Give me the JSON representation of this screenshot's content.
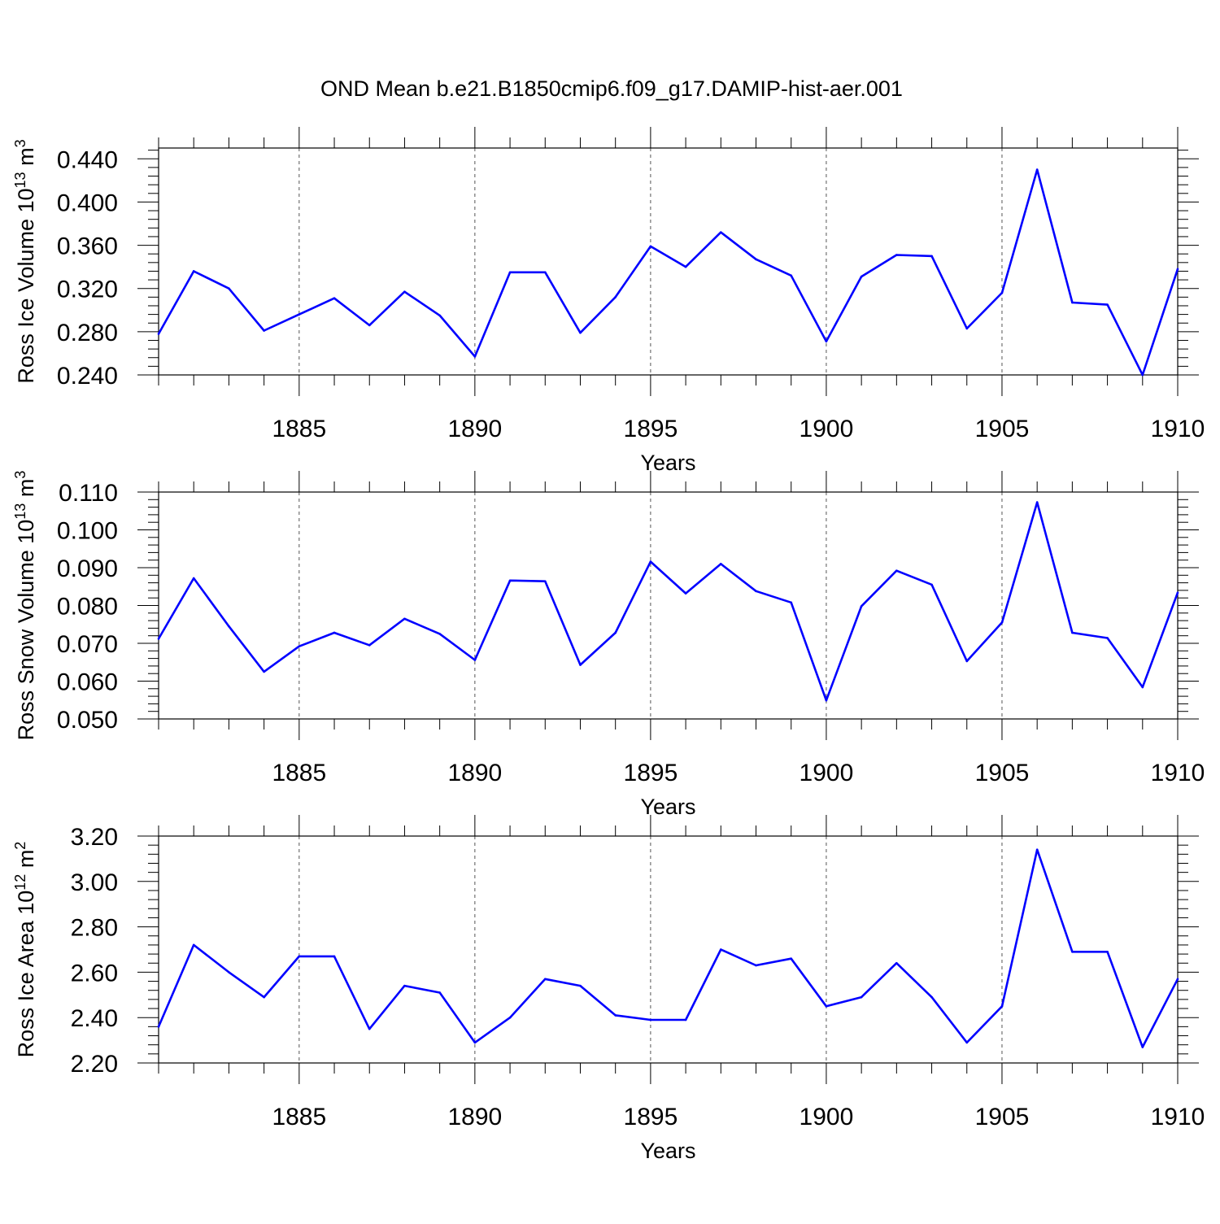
{
  "title": "OND Mean b.e21.B1850cmip6.f09_g17.DAMIP-hist-aer.001",
  "line_color": "#0000ff",
  "chart_data": [
    {
      "type": "line",
      "ylabel": "Ross Ice Volume 10",
      "ylabel_exp": "13",
      "ylabel_unit": "m",
      "ylabel_unit_exp": "3",
      "xlabel": "Years",
      "xlim": [
        1881,
        1910
      ],
      "ylim": [
        0.24,
        0.45
      ],
      "yticks": [
        "0.240",
        "0.280",
        "0.320",
        "0.360",
        "0.400",
        "0.440"
      ],
      "xticks": [
        "1885",
        "1890",
        "1895",
        "1900",
        "1905",
        "1910"
      ],
      "x": [
        1881,
        1882,
        1883,
        1884,
        1885,
        1886,
        1887,
        1888,
        1889,
        1890,
        1891,
        1892,
        1893,
        1894,
        1895,
        1896,
        1897,
        1898,
        1899,
        1900,
        1901,
        1902,
        1903,
        1904,
        1905,
        1906,
        1907,
        1908,
        1909,
        1910
      ],
      "values": [
        0.278,
        0.336,
        0.32,
        0.281,
        0.296,
        0.311,
        0.286,
        0.317,
        0.295,
        0.257,
        0.335,
        0.335,
        0.279,
        0.312,
        0.359,
        0.34,
        0.372,
        0.347,
        0.332,
        0.271,
        0.331,
        0.351,
        0.35,
        0.283,
        0.316,
        0.43,
        0.307,
        0.305,
        0.24,
        0.338
      ]
    },
    {
      "type": "line",
      "ylabel": "Ross Snow Volume 10",
      "ylabel_exp": "13",
      "ylabel_unit": "m",
      "ylabel_unit_exp": "3",
      "xlabel": "Years",
      "xlim": [
        1881,
        1910
      ],
      "ylim": [
        0.05,
        0.11
      ],
      "yticks": [
        "0.050",
        "0.060",
        "0.070",
        "0.080",
        "0.090",
        "0.100",
        "0.110"
      ],
      "xticks": [
        "1885",
        "1890",
        "1895",
        "1900",
        "1905",
        "1910"
      ],
      "x": [
        1881,
        1882,
        1883,
        1884,
        1885,
        1886,
        1887,
        1888,
        1889,
        1890,
        1891,
        1892,
        1893,
        1894,
        1895,
        1896,
        1897,
        1898,
        1899,
        1900,
        1901,
        1902,
        1903,
        1904,
        1905,
        1906,
        1907,
        1908,
        1909,
        1910
      ],
      "values": [
        0.0712,
        0.0872,
        0.0745,
        0.0625,
        0.0692,
        0.0728,
        0.0695,
        0.0765,
        0.0725,
        0.0656,
        0.0866,
        0.0864,
        0.0643,
        0.0728,
        0.0916,
        0.0832,
        0.091,
        0.0838,
        0.0808,
        0.0549,
        0.0798,
        0.0892,
        0.0855,
        0.0653,
        0.0755,
        0.1073,
        0.0728,
        0.0714,
        0.0584,
        0.0834
      ]
    },
    {
      "type": "line",
      "ylabel": "Ross Ice Area 10",
      "ylabel_exp": "12",
      "ylabel_unit": "m",
      "ylabel_unit_exp": "2",
      "xlabel": "Years",
      "xlim": [
        1881,
        1910
      ],
      "ylim": [
        2.2,
        3.2
      ],
      "yticks": [
        "2.20",
        "2.40",
        "2.60",
        "2.80",
        "3.00",
        "3.20"
      ],
      "xticks": [
        "1885",
        "1890",
        "1895",
        "1900",
        "1905",
        "1910"
      ],
      "x": [
        1881,
        1882,
        1883,
        1884,
        1885,
        1886,
        1887,
        1888,
        1889,
        1890,
        1891,
        1892,
        1893,
        1894,
        1895,
        1896,
        1897,
        1898,
        1899,
        1900,
        1901,
        1902,
        1903,
        1904,
        1905,
        1906,
        1907,
        1908,
        1909,
        1910
      ],
      "values": [
        2.36,
        2.72,
        2.6,
        2.49,
        2.67,
        2.67,
        2.35,
        2.54,
        2.51,
        2.29,
        2.4,
        2.57,
        2.54,
        2.41,
        2.39,
        2.39,
        2.7,
        2.63,
        2.66,
        2.45,
        2.49,
        2.64,
        2.49,
        2.29,
        2.45,
        3.14,
        2.69,
        2.69,
        2.27,
        2.57
      ]
    }
  ]
}
